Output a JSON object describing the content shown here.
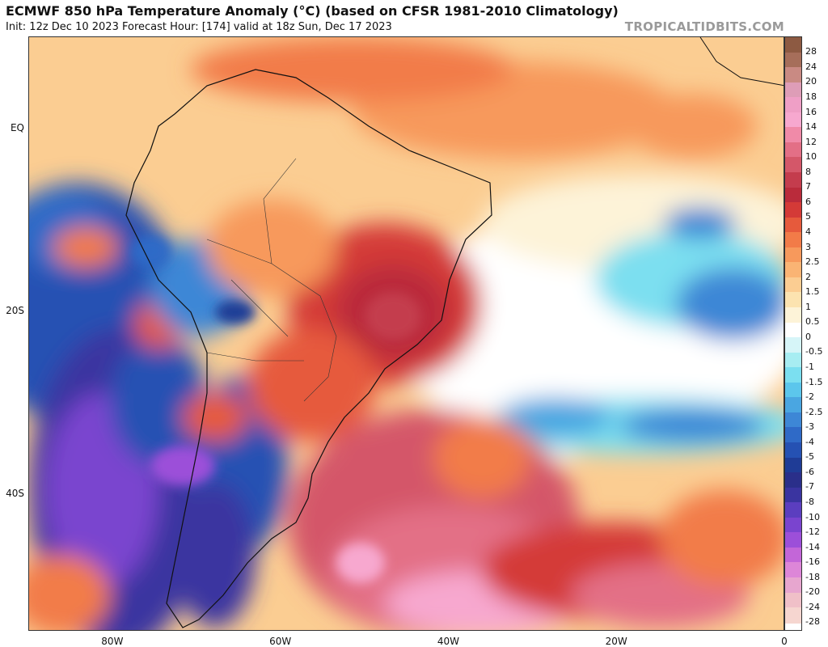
{
  "header": {
    "title": "ECMWF 850 hPa Temperature Anomaly (°C) (based on CFSR 1981-2010 Climatology)",
    "subtitle": "Init: 12z Dec 10 2023   Forecast Hour: [174]   valid at 18z Sun, Dec 17 2023",
    "credit": "TROPICALTIDBITS.COM"
  },
  "axes": {
    "lat_labels": [
      {
        "text": "EQ",
        "lat": 0
      },
      {
        "text": "20S",
        "lat": -20
      },
      {
        "text": "40S",
        "lat": -40
      }
    ],
    "lon_labels": [
      {
        "text": "80W",
        "lon": -80
      },
      {
        "text": "60W",
        "lon": -60
      },
      {
        "text": "40W",
        "lon": -40
      },
      {
        "text": "20W",
        "lon": -20
      },
      {
        "text": "0",
        "lon": 0
      }
    ]
  },
  "colorbar": {
    "levels": [
      {
        "label": "28",
        "color": "#8d5a42"
      },
      {
        "label": "24",
        "color": "#a66e5a"
      },
      {
        "label": "20",
        "color": "#c98a83"
      },
      {
        "label": "18",
        "color": "#de9db7"
      },
      {
        "label": "16",
        "color": "#ef9fc6"
      },
      {
        "label": "14",
        "color": "#f7a8cf"
      },
      {
        "label": "12",
        "color": "#f08aa8"
      },
      {
        "label": "10",
        "color": "#e36f86"
      },
      {
        "label": "8",
        "color": "#d45769"
      },
      {
        "label": "7",
        "color": "#c43c4d"
      },
      {
        "label": "6",
        "color": "#ba2b3b"
      },
      {
        "label": "5",
        "color": "#d43a37"
      },
      {
        "label": "4",
        "color": "#e65a3c"
      },
      {
        "label": "3",
        "color": "#f27b48"
      },
      {
        "label": "2.5",
        "color": "#f7995c"
      },
      {
        "label": "2",
        "color": "#fab474"
      },
      {
        "label": "1.5",
        "color": "#fbcd92"
      },
      {
        "label": "1",
        "color": "#fce3b0"
      },
      {
        "label": "0.5",
        "color": "#fdf3d8"
      },
      {
        "label": "0",
        "color": "#ffffff"
      },
      {
        "label": "-0.5",
        "color": "#d6f5f8"
      },
      {
        "label": "-1",
        "color": "#a7edf2"
      },
      {
        "label": "-1.5",
        "color": "#7bdff0"
      },
      {
        "label": "-2",
        "color": "#5cc6ec"
      },
      {
        "label": "-2.5",
        "color": "#4aa6e1"
      },
      {
        "label": "-3",
        "color": "#3d87d6"
      },
      {
        "label": "-4",
        "color": "#2f6ac7"
      },
      {
        "label": "-5",
        "color": "#2551b3"
      },
      {
        "label": "-6",
        "color": "#1f3c96"
      },
      {
        "label": "-7",
        "color": "#2a2f8a"
      },
      {
        "label": "-8",
        "color": "#3a34a0"
      },
      {
        "label": "-10",
        "color": "#5b3ebf"
      },
      {
        "label": "-12",
        "color": "#7a44cf"
      },
      {
        "label": "-14",
        "color": "#9c4fd9"
      },
      {
        "label": "-16",
        "color": "#c366d8"
      },
      {
        "label": "-18",
        "color": "#dd86d8"
      },
      {
        "label": "-20",
        "color": "#e7a6cf"
      },
      {
        "label": "-24",
        "color": "#f0c0c8"
      },
      {
        "label": "-28",
        "color": "#f6d6d0"
      }
    ]
  }
}
